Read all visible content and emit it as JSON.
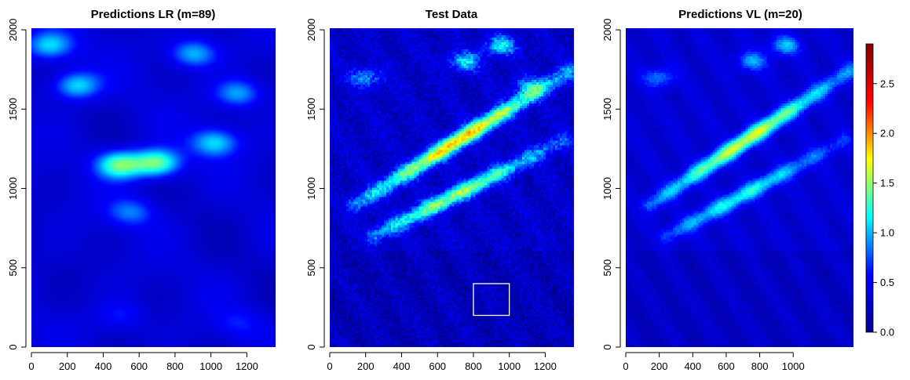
{
  "chart_data": [
    {
      "type": "heatmap",
      "title": "Predictions LR (m=89)",
      "xlim": [
        0,
        1360
      ],
      "ylim": [
        0,
        2010
      ],
      "x_ticks": [
        0,
        200,
        400,
        600,
        800,
        1000,
        1200
      ],
      "y_ticks": [
        0,
        500,
        1000,
        1500,
        2000
      ],
      "surface": "smooth",
      "base_level": 0.35,
      "features": [
        {
          "x": 700,
          "y": 1160,
          "value": 1.45
        },
        {
          "x": 490,
          "y": 1150,
          "value": 1.4
        },
        {
          "x": 1020,
          "y": 1290,
          "value": 1.1
        },
        {
          "x": 250,
          "y": 1650,
          "value": 1.15
        },
        {
          "x": 900,
          "y": 1850,
          "value": 1.05
        },
        {
          "x": 1150,
          "y": 1600,
          "value": 1.0
        },
        {
          "x": 100,
          "y": 1900,
          "value": 1.1
        },
        {
          "x": 550,
          "y": 850,
          "value": 0.85
        },
        {
          "x": 500,
          "y": 200,
          "value": 0.65
        },
        {
          "x": 1150,
          "y": 150,
          "value": 0.6
        }
      ]
    },
    {
      "type": "heatmap",
      "title": "Test Data",
      "xlim": [
        0,
        1360
      ],
      "ylim": [
        0,
        2010
      ],
      "x_ticks": [
        0,
        200,
        400,
        600,
        800,
        1000,
        1200
      ],
      "y_ticks": [
        0,
        500,
        1000,
        1500,
        2000
      ],
      "surface": "noisy",
      "base_level": 0.3,
      "bands": [
        {
          "x_start": 150,
          "y_start": 900,
          "x_end": 1350,
          "y_end": 1750,
          "peak_x": 720,
          "value": 1.85
        },
        {
          "x_start": 250,
          "y_start": 700,
          "x_end": 1300,
          "y_end": 1300,
          "peak_x": 700,
          "value": 1.5
        }
      ],
      "features": [
        {
          "x": 750,
          "y": 1800,
          "value": 1.1
        },
        {
          "x": 950,
          "y": 1900,
          "value": 1.15
        },
        {
          "x": 200,
          "y": 1700,
          "value": 0.95
        },
        {
          "x": 1100,
          "y": 1650,
          "value": 0.8
        }
      ],
      "highlight_box": {
        "x": [
          800,
          1000
        ],
        "y": [
          200,
          400
        ],
        "color": "#ffffff"
      }
    },
    {
      "type": "heatmap",
      "title": "Predictions VL (m=20)",
      "xlim": [
        0,
        1360
      ],
      "ylim": [
        0,
        2010
      ],
      "x_ticks": [
        0,
        200,
        400,
        600,
        800,
        1000
      ],
      "y_ticks": [
        0,
        500,
        1000,
        1500,
        2000
      ],
      "surface": "smoothed",
      "base_level": 0.35,
      "bands": [
        {
          "x_start": 150,
          "y_start": 900,
          "x_end": 1350,
          "y_end": 1750,
          "peak_x": 720,
          "value": 1.65
        },
        {
          "x_start": 250,
          "y_start": 700,
          "x_end": 1300,
          "y_end": 1300,
          "peak_x": 700,
          "value": 1.2
        }
      ],
      "features": [
        {
          "x": 750,
          "y": 1800,
          "value": 0.95
        },
        {
          "x": 950,
          "y": 1900,
          "value": 1.0
        },
        {
          "x": 200,
          "y": 1700,
          "value": 0.9
        }
      ]
    }
  ],
  "colorbar": {
    "range": [
      0,
      2.9
    ],
    "ticks": [
      "0.0",
      "0.5",
      "1.0",
      "1.5",
      "2.0",
      "2.5"
    ],
    "tick_values": [
      0,
      0.5,
      1.0,
      1.5,
      2.0,
      2.5
    ],
    "colormap": [
      "#00008f",
      "#0000ff",
      "#00ffff",
      "#ffff00",
      "#ff0000",
      "#800000"
    ]
  }
}
